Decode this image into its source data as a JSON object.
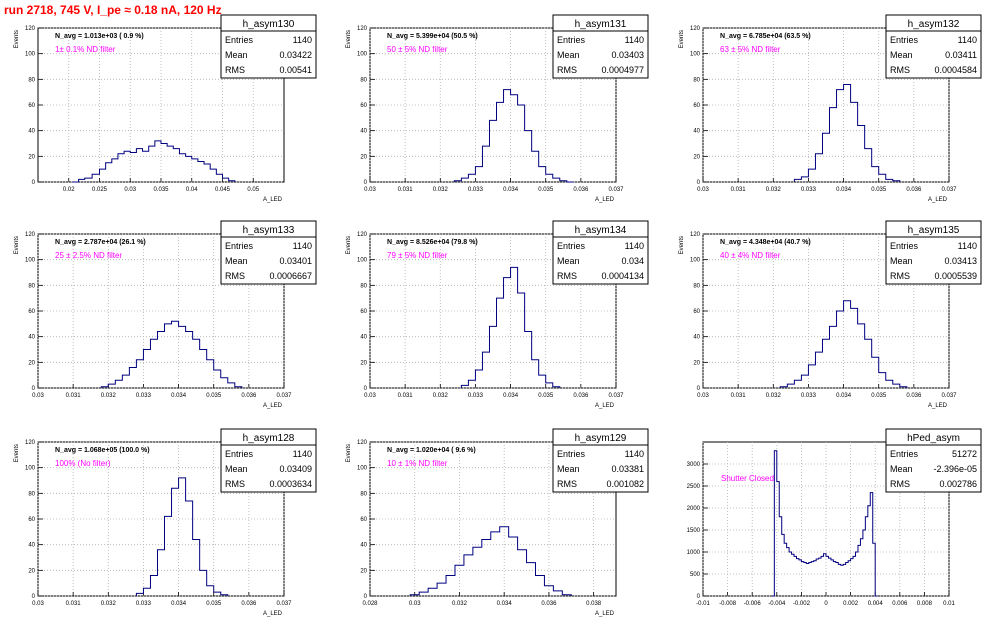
{
  "title": "run 2718,   745 V, I_pe ≈ 0.18 nA, 120 Hz",
  "chart_data": [
    {
      "type": "histogram",
      "id": "h_asym130",
      "ylabel": "Events",
      "xlabel": "A_LED",
      "navg": "N_avg = 1.013e+03 ( 0.9 %)",
      "filter": "1± 0.1% ND filter",
      "filter_color": "#ff00ff",
      "stats": {
        "name": "h_asym130",
        "entries": "1140",
        "mean": "0.03422",
        "rms": "0.00541"
      },
      "xlim": [
        0.015,
        0.055
      ],
      "ylim": [
        0,
        120
      ],
      "xticks": [
        0.02,
        0.025,
        0.03,
        0.035,
        0.04,
        0.045,
        0.05
      ],
      "xtick_labels": [
        "0.02",
        "0.025",
        "0.03",
        "0.035",
        "0.04",
        "0.045",
        "0.05"
      ],
      "yticks": [
        0,
        20,
        40,
        60,
        80,
        100,
        120
      ],
      "bins": [
        0.0205,
        0.0216,
        0.0226,
        0.0238,
        0.025,
        0.026,
        0.027,
        0.028,
        0.029,
        0.03,
        0.031,
        0.032,
        0.033,
        0.034,
        0.035,
        0.036,
        0.037,
        0.038,
        0.039,
        0.04,
        0.041,
        0.042,
        0.043,
        0.044,
        0.045,
        0.046,
        0.047
      ],
      "counts": [
        0,
        2,
        3,
        6,
        10,
        15,
        18,
        22,
        24,
        23,
        26,
        24,
        28,
        32,
        30,
        28,
        26,
        22,
        20,
        18,
        16,
        14,
        10,
        6,
        3,
        1
      ]
    },
    {
      "type": "histogram",
      "id": "h_asym131",
      "ylabel": "Events",
      "xlabel": "A_LED",
      "navg": "N_avg = 5.399e+04 (50.5 %)",
      "filter": "50 ± 5% ND filter",
      "filter_color": "#ff00ff",
      "stats": {
        "name": "h_asym131",
        "entries": "1140",
        "mean": "0.03403",
        "rms": "0.0004977"
      },
      "xlim": [
        0.03,
        0.037
      ],
      "ylim": [
        0,
        120
      ],
      "xticks": [
        0.03,
        0.031,
        0.032,
        0.033,
        0.034,
        0.035,
        0.036,
        0.037
      ],
      "xtick_labels": [
        "0.03",
        "0.031",
        "0.032",
        "0.033",
        "0.034",
        "0.035",
        "0.036",
        "0.037"
      ],
      "yticks": [
        0,
        20,
        40,
        60,
        80,
        100,
        120
      ],
      "bins": [
        0.0324,
        0.0326,
        0.0328,
        0.033,
        0.0332,
        0.0334,
        0.0336,
        0.0338,
        0.034,
        0.0342,
        0.0344,
        0.0346,
        0.0348,
        0.035,
        0.0352,
        0.0354,
        0.0356,
        0.0358
      ],
      "counts": [
        1,
        3,
        6,
        12,
        28,
        48,
        62,
        72,
        68,
        60,
        40,
        24,
        12,
        6,
        3,
        1,
        0
      ]
    },
    {
      "type": "histogram",
      "id": "h_asym132",
      "ylabel": "Events",
      "xlabel": "A_LED",
      "navg": "N_avg = 6.785e+04 (63.5 %)",
      "filter": "63 ± 5% ND filter",
      "filter_color": "#ff00ff",
      "stats": {
        "name": "h_asym132",
        "entries": "1140",
        "mean": "0.03411",
        "rms": "0.0004584"
      },
      "xlim": [
        0.03,
        0.037
      ],
      "ylim": [
        0,
        120
      ],
      "xticks": [
        0.03,
        0.031,
        0.032,
        0.033,
        0.034,
        0.035,
        0.036,
        0.037
      ],
      "xtick_labels": [
        "0.03",
        "0.031",
        "0.032",
        "0.033",
        "0.034",
        "0.035",
        "0.036",
        "0.037"
      ],
      "yticks": [
        0,
        20,
        40,
        60,
        80,
        100,
        120
      ],
      "bins": [
        0.0326,
        0.0328,
        0.033,
        0.0332,
        0.0334,
        0.0336,
        0.0338,
        0.034,
        0.0342,
        0.0344,
        0.0346,
        0.0348,
        0.035,
        0.0352,
        0.0354,
        0.0356
      ],
      "counts": [
        2,
        4,
        10,
        22,
        38,
        58,
        72,
        76,
        62,
        44,
        26,
        12,
        6,
        2,
        1
      ]
    },
    {
      "type": "histogram",
      "id": "h_asym133",
      "ylabel": "Events",
      "xlabel": "A_LED",
      "navg": "N_avg = 2.787e+04 (26.1 %)",
      "filter": "25 ± 2.5% ND filter",
      "filter_color": "#ff00ff",
      "stats": {
        "name": "h_asym133",
        "entries": "1140",
        "mean": "0.03401",
        "rms": "0.0006667"
      },
      "xlim": [
        0.03,
        0.037
      ],
      "ylim": [
        0,
        120
      ],
      "xticks": [
        0.03,
        0.031,
        0.032,
        0.033,
        0.034,
        0.035,
        0.036,
        0.037
      ],
      "xtick_labels": [
        "0.03",
        "0.031",
        "0.032",
        "0.033",
        "0.034",
        "0.035",
        "0.036",
        "0.037"
      ],
      "yticks": [
        0,
        20,
        40,
        60,
        80,
        100,
        120
      ],
      "bins": [
        0.0318,
        0.032,
        0.0322,
        0.0324,
        0.0326,
        0.0328,
        0.033,
        0.0332,
        0.0334,
        0.0336,
        0.0338,
        0.034,
        0.0342,
        0.0344,
        0.0346,
        0.0348,
        0.035,
        0.0352,
        0.0354,
        0.0356,
        0.0358
      ],
      "counts": [
        1,
        3,
        6,
        10,
        16,
        22,
        30,
        38,
        44,
        50,
        52,
        48,
        44,
        38,
        30,
        22,
        14,
        8,
        4,
        1
      ]
    },
    {
      "type": "histogram",
      "id": "h_asym134",
      "ylabel": "Events",
      "xlabel": "A_LED",
      "navg": "N_avg = 8.526e+04 (79.8 %)",
      "filter": "79 ± 5% ND filter",
      "filter_color": "#ff00ff",
      "stats": {
        "name": "h_asym134",
        "entries": "1140",
        "mean": "0.034",
        "rms": "0.0004134"
      },
      "xlim": [
        0.03,
        0.037
      ],
      "ylim": [
        0,
        120
      ],
      "xticks": [
        0.03,
        0.031,
        0.032,
        0.033,
        0.034,
        0.035,
        0.036,
        0.037
      ],
      "xtick_labels": [
        "0.03",
        "0.031",
        "0.032",
        "0.033",
        "0.034",
        "0.035",
        "0.036",
        "0.037"
      ],
      "yticks": [
        0,
        20,
        40,
        60,
        80,
        100,
        120
      ],
      "bins": [
        0.0326,
        0.0328,
        0.033,
        0.0332,
        0.0334,
        0.0336,
        0.0338,
        0.034,
        0.0342,
        0.0344,
        0.0346,
        0.0348,
        0.035,
        0.0352,
        0.0354
      ],
      "counts": [
        2,
        6,
        14,
        28,
        48,
        70,
        86,
        94,
        74,
        44,
        22,
        10,
        4,
        1
      ]
    },
    {
      "type": "histogram",
      "id": "h_asym135",
      "ylabel": "Events",
      "xlabel": "A_LED",
      "navg": "N_avg = 4.348e+04 (40.7 %)",
      "filter": "40 ± 4% ND filter",
      "filter_color": "#ff00ff",
      "stats": {
        "name": "h_asym135",
        "entries": "1140",
        "mean": "0.03413",
        "rms": "0.0005539"
      },
      "xlim": [
        0.03,
        0.037
      ],
      "ylim": [
        0,
        120
      ],
      "xticks": [
        0.03,
        0.031,
        0.032,
        0.033,
        0.034,
        0.035,
        0.036,
        0.037
      ],
      "xtick_labels": [
        "0.03",
        "0.031",
        "0.032",
        "0.033",
        "0.034",
        "0.035",
        "0.036",
        "0.037"
      ],
      "yticks": [
        0,
        20,
        40,
        60,
        80,
        100,
        120
      ],
      "bins": [
        0.0322,
        0.0324,
        0.0326,
        0.0328,
        0.033,
        0.0332,
        0.0334,
        0.0336,
        0.0338,
        0.034,
        0.0342,
        0.0344,
        0.0346,
        0.0348,
        0.035,
        0.0352,
        0.0354,
        0.0356,
        0.0358
      ],
      "counts": [
        1,
        3,
        6,
        10,
        18,
        28,
        38,
        48,
        60,
        68,
        62,
        50,
        38,
        24,
        12,
        6,
        3,
        1
      ]
    },
    {
      "type": "histogram",
      "id": "h_asym128",
      "ylabel": "Events",
      "xlabel": "A_LED",
      "navg": "N_avg = 1.068e+05 (100.0 %)",
      "filter": "100% (No filter)",
      "filter_color": "#ff00ff",
      "stats": {
        "name": "h_asym128",
        "entries": "1140",
        "mean": "0.03409",
        "rms": "0.0003634"
      },
      "xlim": [
        0.03,
        0.037
      ],
      "ylim": [
        0,
        120
      ],
      "xticks": [
        0.03,
        0.031,
        0.032,
        0.033,
        0.034,
        0.035,
        0.036,
        0.037
      ],
      "xtick_labels": [
        "0.03",
        "0.031",
        "0.032",
        "0.033",
        "0.034",
        "0.035",
        "0.036",
        "0.037"
      ],
      "yticks": [
        0,
        20,
        40,
        60,
        80,
        100,
        120
      ],
      "bins": [
        0.0328,
        0.033,
        0.0332,
        0.0334,
        0.0336,
        0.0338,
        0.034,
        0.0342,
        0.0344,
        0.0346,
        0.0348,
        0.035,
        0.0352,
        0.0354
      ],
      "counts": [
        2,
        6,
        16,
        36,
        62,
        84,
        92,
        74,
        44,
        20,
        8,
        3,
        1
      ]
    },
    {
      "type": "histogram",
      "id": "h_asym129",
      "ylabel": "Events",
      "xlabel": "A_LED",
      "navg": "N_avg = 1.020e+04 ( 9.6 %)",
      "filter": "10 ± 1% ND filter",
      "filter_color": "#ff00ff",
      "stats": {
        "name": "h_asym129",
        "entries": "1140",
        "mean": "0.03381",
        "rms": "0.001082"
      },
      "xlim": [
        0.028,
        0.039
      ],
      "ylim": [
        0,
        120
      ],
      "xticks": [
        0.028,
        0.03,
        0.032,
        0.034,
        0.036,
        0.038
      ],
      "xtick_labels": [
        "0.028",
        "0.03",
        "0.032",
        "0.034",
        "0.036",
        "0.038"
      ],
      "yticks": [
        0,
        20,
        40,
        60,
        80,
        100,
        120
      ],
      "bins": [
        0.0298,
        0.0302,
        0.0306,
        0.031,
        0.0314,
        0.0318,
        0.0322,
        0.0326,
        0.033,
        0.0334,
        0.0338,
        0.0342,
        0.0346,
        0.035,
        0.0354,
        0.0358,
        0.0362,
        0.0366,
        0.037
      ],
      "counts": [
        1,
        3,
        6,
        10,
        16,
        24,
        32,
        38,
        44,
        50,
        54,
        46,
        36,
        26,
        16,
        8,
        4,
        1
      ]
    },
    {
      "type": "histogram",
      "id": "hPed_asym",
      "ylabel": "",
      "xlabel": "",
      "navg": "",
      "filter": "Shutter Closed",
      "filter_color": "#ff00ff",
      "stats": {
        "name": "hPed_asym",
        "entries": "51272",
        "mean": "-2.396e-05",
        "rms": "0.002786"
      },
      "xlim": [
        -0.01,
        0.01
      ],
      "ylim": [
        0,
        3500
      ],
      "xticks": [
        -0.01,
        -0.008,
        -0.006,
        -0.004,
        -0.002,
        0,
        0.002,
        0.004,
        0.006,
        0.008,
        0.01
      ],
      "xtick_labels": [
        "-0.01",
        "-0.008",
        "-0.006",
        "-0.004",
        "-0.002",
        "0",
        "0.002",
        "0.004",
        "0.006",
        "0.008",
        "0.01"
      ],
      "yticks": [
        0,
        500,
        1000,
        1500,
        2000,
        2500,
        3000
      ],
      "bins": [
        -0.0044,
        -0.0042,
        -0.004,
        -0.0038,
        -0.0036,
        -0.0034,
        -0.0032,
        -0.003,
        -0.0028,
        -0.0026,
        -0.0024,
        -0.0022,
        -0.002,
        -0.0018,
        -0.0016,
        -0.0014,
        -0.0012,
        -0.001,
        -0.0008,
        -0.0006,
        -0.0004,
        -0.0002,
        0.0,
        0.0002,
        0.0004,
        0.0006,
        0.0008,
        0.001,
        0.0012,
        0.0014,
        0.0016,
        0.0018,
        0.002,
        0.0022,
        0.0024,
        0.0026,
        0.0028,
        0.003,
        0.0032,
        0.0034,
        0.0036,
        0.0038,
        0.004,
        0.0042
      ],
      "counts": [
        0,
        3300,
        2600,
        1800,
        1400,
        1200,
        1100,
        1000,
        950,
        900,
        850,
        820,
        780,
        760,
        740,
        760,
        780,
        800,
        840,
        860,
        900,
        960,
        900,
        860,
        820,
        780,
        760,
        720,
        700,
        720,
        760,
        800,
        850,
        900,
        1000,
        1150,
        1300,
        1500,
        1800,
        2050,
        2350,
        1200,
        0
      ]
    }
  ]
}
